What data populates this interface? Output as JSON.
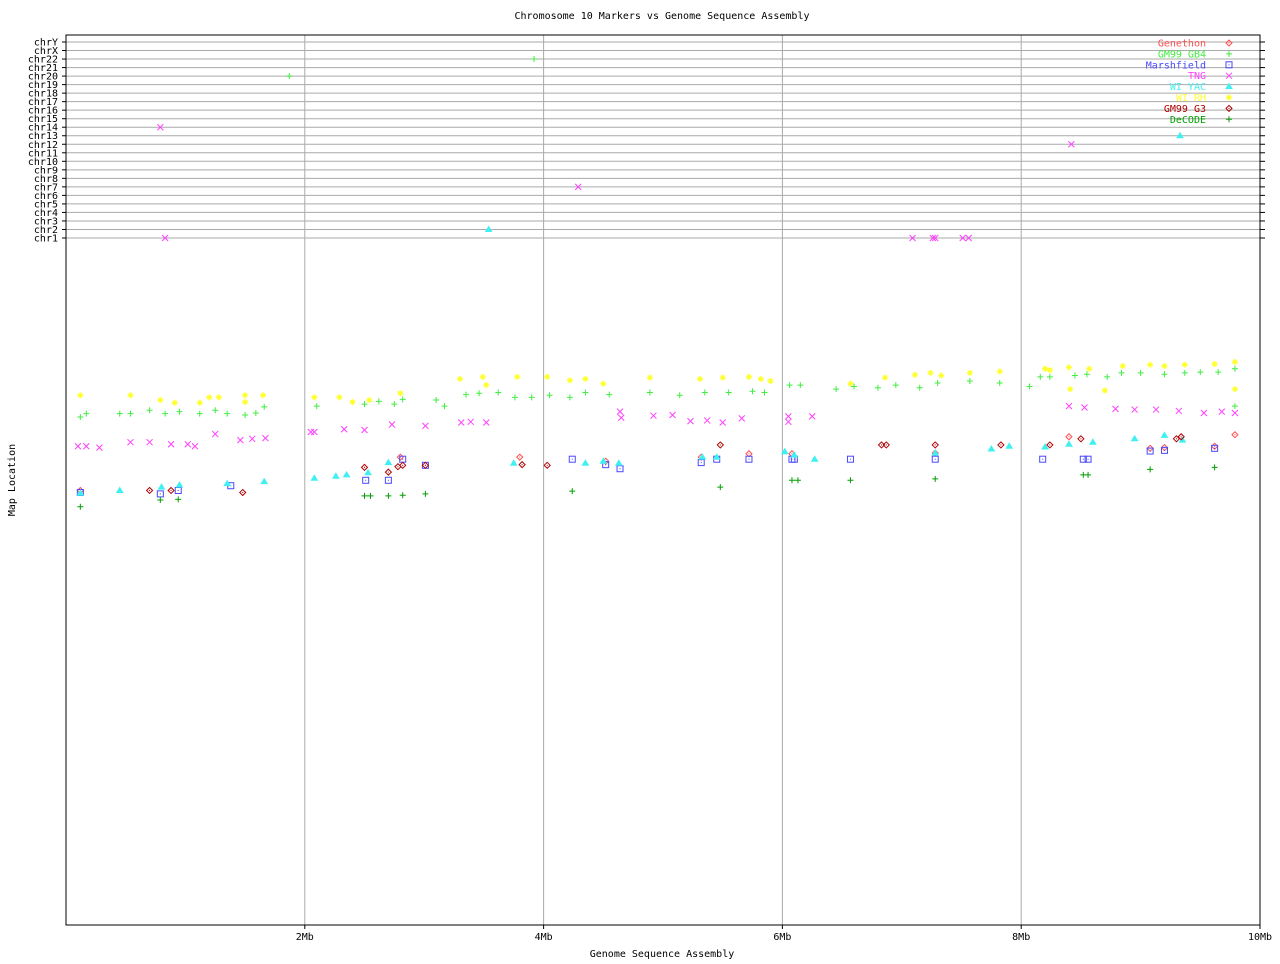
{
  "chart_data": {
    "type": "scatter",
    "title": "Chromosome 10 Markers vs Genome Sequence Assembly",
    "xlabel": "Genome Sequence Assembly",
    "ylabel": "Map Location",
    "xlim": [
      0,
      10
    ],
    "x_unit": "Mb",
    "x_ticks": [
      {
        "value": 2,
        "label": "2Mb"
      },
      {
        "value": 4,
        "label": "4Mb"
      },
      {
        "value": 6,
        "label": "6Mb"
      },
      {
        "value": 8,
        "label": "8Mb"
      },
      {
        "value": 10,
        "label": "10Mb"
      }
    ],
    "grid": true,
    "legend_placement": "top-right",
    "chromosome_rows": [
      "chrY",
      "chrX",
      "chr22",
      "chr21",
      "chr20",
      "chr19",
      "chr18",
      "chr17",
      "chr16",
      "chr15",
      "chr14",
      "chr13",
      "chr12",
      "chr11",
      "chr10",
      "chr9",
      "chr8",
      "chr7",
      "chr6",
      "chr5",
      "chr4",
      "chr3",
      "chr2",
      "chr1"
    ],
    "map_location_lim": [
      0,
      100
    ],
    "series": [
      {
        "name": "Genethon",
        "color": "#ff5050",
        "marker": "diamond",
        "points": [
          [
            0.12,
            63.9
          ],
          [
            2.8,
            68.8
          ],
          [
            3.8,
            68.8
          ],
          [
            4.52,
            68.2
          ],
          [
            5.32,
            68.8
          ],
          [
            5.72,
            69.3
          ],
          [
            6.08,
            69.3
          ],
          [
            7.28,
            69.4
          ],
          [
            8.4,
            71.8
          ],
          [
            9.08,
            70.1
          ],
          [
            9.2,
            70.2
          ],
          [
            9.62,
            70.4
          ],
          [
            9.79,
            72.1
          ]
        ],
        "other_chromosomes": []
      },
      {
        "name": "GM99 GB4",
        "color": "#40ee40",
        "marker": "plus",
        "points": [
          [
            0.12,
            74.7
          ],
          [
            0.17,
            75.2
          ],
          [
            0.45,
            75.2
          ],
          [
            0.54,
            75.2
          ],
          [
            0.7,
            75.7
          ],
          [
            0.83,
            75.2
          ],
          [
            0.95,
            75.5
          ],
          [
            1.12,
            75.2
          ],
          [
            1.25,
            75.7
          ],
          [
            1.35,
            75.2
          ],
          [
            1.5,
            75.0
          ],
          [
            1.59,
            75.3
          ],
          [
            1.66,
            76.2
          ],
          [
            2.1,
            76.3
          ],
          [
            2.5,
            76.6
          ],
          [
            2.62,
            77.0
          ],
          [
            2.75,
            76.6
          ],
          [
            2.82,
            77.3
          ],
          [
            3.1,
            77.2
          ],
          [
            3.17,
            76.3
          ],
          [
            3.35,
            78.0
          ],
          [
            3.46,
            78.2
          ],
          [
            3.62,
            78.3
          ],
          [
            3.76,
            77.6
          ],
          [
            3.9,
            77.6
          ],
          [
            4.05,
            77.9
          ],
          [
            4.22,
            77.6
          ],
          [
            4.35,
            78.3
          ],
          [
            4.55,
            78.0
          ],
          [
            4.89,
            78.3
          ],
          [
            5.14,
            77.9
          ],
          [
            5.35,
            78.3
          ],
          [
            5.55,
            78.3
          ],
          [
            5.75,
            78.5
          ],
          [
            5.85,
            78.3
          ],
          [
            6.06,
            79.4
          ],
          [
            6.15,
            79.4
          ],
          [
            6.45,
            78.8
          ],
          [
            6.6,
            79.2
          ],
          [
            6.8,
            79.0
          ],
          [
            6.95,
            79.4
          ],
          [
            7.15,
            79.0
          ],
          [
            7.3,
            79.7
          ],
          [
            7.57,
            80.0
          ],
          [
            7.82,
            79.7
          ],
          [
            8.07,
            79.2
          ],
          [
            8.16,
            80.6
          ],
          [
            8.24,
            80.6
          ],
          [
            8.45,
            80.8
          ],
          [
            8.55,
            81.0
          ],
          [
            8.72,
            80.6
          ],
          [
            8.84,
            81.2
          ],
          [
            9.0,
            81.2
          ],
          [
            9.2,
            81.0
          ],
          [
            9.37,
            81.2
          ],
          [
            9.5,
            81.3
          ],
          [
            9.65,
            81.3
          ],
          [
            9.79,
            81.8
          ],
          [
            9.79,
            76.3
          ]
        ],
        "other_chromosomes": [
          [
            1.87,
            "chr20"
          ],
          [
            3.92,
            "chr22"
          ]
        ]
      },
      {
        "name": "Marshfield",
        "color": "#4848ff",
        "marker": "square-dot",
        "points": [
          [
            0.12,
            63.6
          ],
          [
            0.79,
            63.4
          ],
          [
            0.94,
            63.9
          ],
          [
            1.38,
            64.6
          ],
          [
            2.51,
            65.4
          ],
          [
            2.7,
            65.4
          ],
          [
            2.82,
            68.5
          ],
          [
            3.01,
            67.6
          ],
          [
            4.24,
            68.5
          ],
          [
            4.52,
            67.7
          ],
          [
            4.64,
            67.1
          ],
          [
            5.32,
            68.0
          ],
          [
            5.45,
            68.5
          ],
          [
            5.72,
            68.5
          ],
          [
            6.08,
            68.5
          ],
          [
            6.1,
            68.5
          ],
          [
            6.57,
            68.5
          ],
          [
            7.28,
            68.5
          ],
          [
            8.18,
            68.5
          ],
          [
            8.52,
            68.5
          ],
          [
            8.56,
            68.5
          ],
          [
            9.08,
            69.7
          ],
          [
            9.2,
            69.8
          ],
          [
            9.62,
            70.1
          ]
        ],
        "other_chromosomes": []
      },
      {
        "name": "TNG",
        "color": "#ff40ff",
        "marker": "x",
        "points": [
          [
            0.1,
            70.4
          ],
          [
            0.17,
            70.4
          ],
          [
            0.28,
            70.2
          ],
          [
            0.54,
            71.0
          ],
          [
            0.7,
            71.0
          ],
          [
            0.88,
            70.7
          ],
          [
            1.02,
            70.7
          ],
          [
            1.08,
            70.4
          ],
          [
            1.25,
            72.2
          ],
          [
            1.46,
            71.3
          ],
          [
            1.56,
            71.5
          ],
          [
            1.67,
            71.6
          ],
          [
            2.05,
            72.5
          ],
          [
            2.08,
            72.5
          ],
          [
            2.33,
            72.9
          ],
          [
            2.5,
            72.8
          ],
          [
            2.73,
            73.6
          ],
          [
            3.01,
            73.4
          ],
          [
            3.31,
            73.9
          ],
          [
            3.39,
            74.0
          ],
          [
            3.52,
            73.9
          ],
          [
            4.64,
            75.5
          ],
          [
            4.65,
            74.6
          ],
          [
            4.92,
            74.9
          ],
          [
            5.08,
            75.0
          ],
          [
            5.23,
            74.1
          ],
          [
            5.37,
            74.2
          ],
          [
            5.5,
            73.9
          ],
          [
            5.66,
            74.5
          ],
          [
            6.05,
            74.0
          ],
          [
            6.05,
            74.8
          ],
          [
            6.25,
            74.8
          ],
          [
            8.4,
            76.3
          ],
          [
            8.53,
            76.1
          ],
          [
            8.79,
            75.9
          ],
          [
            8.95,
            75.8
          ],
          [
            9.13,
            75.8
          ],
          [
            9.32,
            75.6
          ],
          [
            9.53,
            75.3
          ],
          [
            9.68,
            75.5
          ],
          [
            9.79,
            75.3
          ]
        ],
        "other_chromosomes": [
          [
            0.79,
            "chr14"
          ],
          [
            0.83,
            "chr1"
          ],
          [
            4.29,
            "chr7"
          ],
          [
            8.42,
            "chr12"
          ],
          [
            7.09,
            "chr1"
          ],
          [
            7.26,
            "chr1"
          ],
          [
            7.28,
            "chr1"
          ],
          [
            7.51,
            "chr1"
          ],
          [
            7.56,
            "chr1"
          ]
        ]
      },
      {
        "name": "WI YAC",
        "color": "#40f0f0",
        "marker": "triangle",
        "points": [
          [
            0.12,
            63.5
          ],
          [
            0.45,
            63.9
          ],
          [
            0.8,
            64.4
          ],
          [
            0.95,
            64.7
          ],
          [
            1.35,
            64.9
          ],
          [
            1.66,
            65.2
          ],
          [
            2.08,
            65.7
          ],
          [
            2.26,
            66.0
          ],
          [
            2.35,
            66.2
          ],
          [
            2.53,
            66.5
          ],
          [
            2.7,
            68.0
          ],
          [
            3.75,
            67.9
          ],
          [
            4.35,
            67.9
          ],
          [
            4.5,
            68.2
          ],
          [
            4.63,
            67.9
          ],
          [
            5.33,
            68.8
          ],
          [
            5.45,
            68.8
          ],
          [
            6.02,
            69.6
          ],
          [
            6.1,
            69.1
          ],
          [
            6.27,
            68.5
          ],
          [
            7.28,
            69.4
          ],
          [
            7.75,
            70.0
          ],
          [
            7.9,
            70.4
          ],
          [
            8.2,
            70.3
          ],
          [
            8.4,
            70.7
          ],
          [
            8.6,
            71.0
          ],
          [
            8.95,
            71.5
          ],
          [
            9.2,
            72.0
          ],
          [
            9.35,
            71.3
          ]
        ],
        "other_chromosomes": [
          [
            3.54,
            "chr2"
          ],
          [
            9.33,
            "chr13"
          ]
        ]
      },
      {
        "name": "WI RH",
        "color": "#ffff30",
        "marker": "asterisk",
        "points": [
          [
            0.12,
            77.9
          ],
          [
            0.54,
            77.9
          ],
          [
            0.79,
            77.2
          ],
          [
            0.91,
            76.8
          ],
          [
            1.12,
            76.8
          ],
          [
            1.2,
            77.6
          ],
          [
            1.28,
            77.6
          ],
          [
            1.5,
            77.9
          ],
          [
            1.5,
            76.9
          ],
          [
            1.65,
            77.9
          ],
          [
            2.08,
            77.6
          ],
          [
            2.29,
            77.6
          ],
          [
            2.4,
            76.9
          ],
          [
            2.54,
            77.2
          ],
          [
            2.8,
            78.2
          ],
          [
            3.3,
            80.3
          ],
          [
            3.49,
            80.6
          ],
          [
            3.52,
            79.4
          ],
          [
            3.78,
            80.6
          ],
          [
            4.03,
            80.6
          ],
          [
            4.22,
            80.1
          ],
          [
            4.35,
            80.3
          ],
          [
            4.5,
            79.6
          ],
          [
            4.89,
            80.5
          ],
          [
            5.31,
            80.3
          ],
          [
            5.5,
            80.5
          ],
          [
            5.72,
            80.6
          ],
          [
            5.82,
            80.3
          ],
          [
            5.9,
            80.0
          ],
          [
            6.57,
            79.6
          ],
          [
            6.86,
            80.5
          ],
          [
            7.11,
            80.9
          ],
          [
            7.24,
            81.2
          ],
          [
            7.33,
            80.8
          ],
          [
            7.57,
            81.2
          ],
          [
            7.82,
            81.4
          ],
          [
            8.2,
            81.8
          ],
          [
            8.24,
            81.6
          ],
          [
            8.4,
            82.0
          ],
          [
            8.41,
            78.8
          ],
          [
            8.57,
            81.8
          ],
          [
            8.7,
            78.6
          ],
          [
            8.85,
            82.2
          ],
          [
            9.08,
            82.4
          ],
          [
            9.2,
            82.2
          ],
          [
            9.37,
            82.4
          ],
          [
            9.62,
            82.5
          ],
          [
            9.79,
            82.8
          ],
          [
            9.79,
            78.8
          ]
        ],
        "other_chromosomes": []
      },
      {
        "name": "GM99 G3",
        "color": "#b00000",
        "marker": "diamond",
        "points": [
          [
            0.7,
            63.9
          ],
          [
            0.88,
            63.9
          ],
          [
            1.48,
            63.6
          ],
          [
            2.5,
            67.3
          ],
          [
            2.7,
            66.6
          ],
          [
            2.78,
            67.4
          ],
          [
            2.82,
            67.6
          ],
          [
            3.01,
            67.6
          ],
          [
            3.82,
            67.7
          ],
          [
            4.03,
            67.6
          ],
          [
            5.48,
            70.6
          ],
          [
            6.83,
            70.6
          ],
          [
            6.87,
            70.6
          ],
          [
            7.28,
            70.6
          ],
          [
            7.83,
            70.6
          ],
          [
            8.24,
            70.6
          ],
          [
            8.5,
            71.5
          ],
          [
            9.3,
            71.5
          ],
          [
            9.34,
            71.8
          ]
        ],
        "other_chromosomes": []
      },
      {
        "name": "DeCODE",
        "color": "#00a000",
        "marker": "plus",
        "points": [
          [
            0.12,
            61.5
          ],
          [
            0.79,
            62.5
          ],
          [
            0.94,
            62.6
          ],
          [
            2.5,
            63.1
          ],
          [
            2.55,
            63.1
          ],
          [
            2.7,
            63.1
          ],
          [
            2.82,
            63.2
          ],
          [
            3.01,
            63.4
          ],
          [
            4.24,
            63.8
          ],
          [
            5.48,
            64.4
          ],
          [
            6.08,
            65.4
          ],
          [
            6.13,
            65.4
          ],
          [
            6.57,
            65.4
          ],
          [
            7.28,
            65.6
          ],
          [
            8.52,
            66.2
          ],
          [
            8.56,
            66.2
          ],
          [
            9.08,
            67.0
          ],
          [
            9.62,
            67.3
          ]
        ],
        "other_chromosomes": []
      }
    ]
  }
}
